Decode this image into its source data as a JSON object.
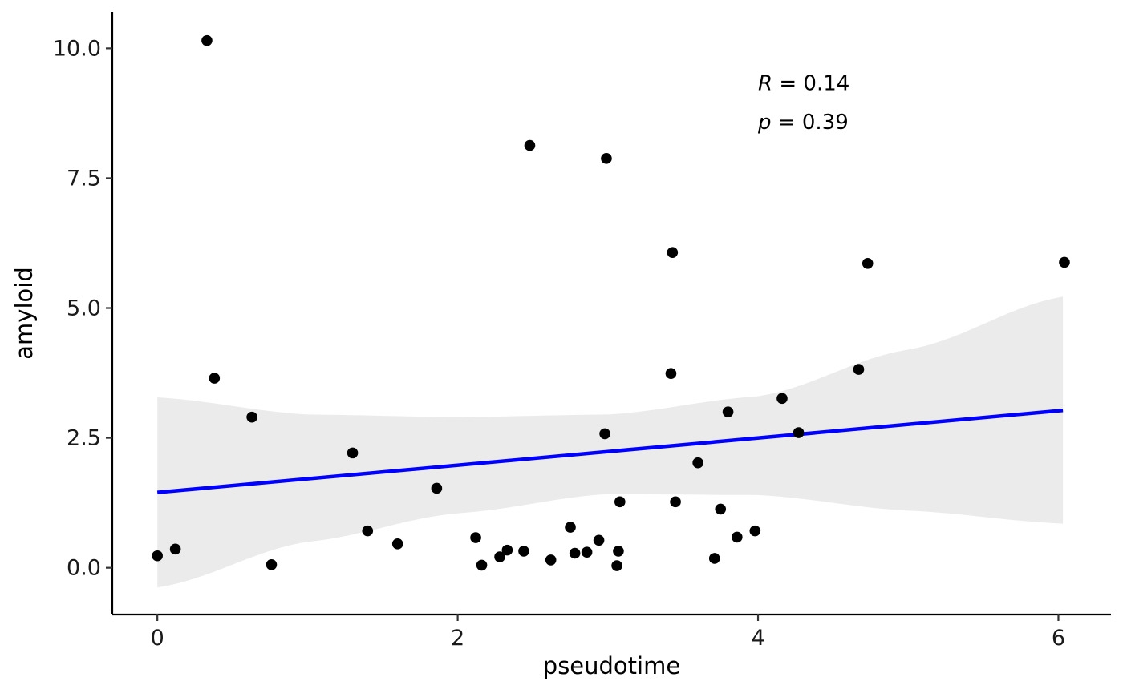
{
  "chart_data": {
    "type": "scatter",
    "title": "",
    "xlabel": "pseudotime",
    "ylabel": "amyloid",
    "xlim": [
      -0.3,
      6.35
    ],
    "ylim": [
      -0.9,
      10.7
    ],
    "x_ticks": [
      0,
      2,
      4,
      6
    ],
    "x_tick_labels": [
      "0",
      "2",
      "4",
      "6"
    ],
    "y_ticks": [
      0,
      2.5,
      5,
      7.5,
      10
    ],
    "y_tick_labels": [
      "0.0",
      "2.5",
      "5.0",
      "7.5",
      "10.0"
    ],
    "grid": false,
    "annotations": [
      {
        "var": "R",
        "text": " = 0.14",
        "x": 4.0,
        "y": 9.35
      },
      {
        "var": "p",
        "text": " = 0.39",
        "x": 4.0,
        "y": 8.6
      }
    ],
    "regression": {
      "x_start": 0.0,
      "y_start": 1.45,
      "x_end": 6.03,
      "y_end": 3.03,
      "color": "#0000ff"
    },
    "confidence_band": {
      "color": "#ebebeb",
      "x": [
        0.0,
        1.0,
        2.0,
        3.0,
        4.0,
        5.0,
        6.03
      ],
      "upper": [
        3.28,
        2.95,
        2.9,
        2.95,
        3.3,
        4.2,
        5.22
      ],
      "lower": [
        -0.38,
        0.5,
        1.05,
        1.42,
        1.4,
        1.1,
        0.85
      ]
    },
    "point_color": "#000000",
    "points": [
      {
        "x": 0.0,
        "y": 0.23
      },
      {
        "x": 0.12,
        "y": 0.36
      },
      {
        "x": 0.33,
        "y": 10.15
      },
      {
        "x": 0.38,
        "y": 3.65
      },
      {
        "x": 0.63,
        "y": 2.9
      },
      {
        "x": 0.76,
        "y": 0.06
      },
      {
        "x": 1.3,
        "y": 2.21
      },
      {
        "x": 1.4,
        "y": 0.71
      },
      {
        "x": 1.6,
        "y": 0.46
      },
      {
        "x": 1.86,
        "y": 1.53
      },
      {
        "x": 2.12,
        "y": 0.58
      },
      {
        "x": 2.16,
        "y": 0.05
      },
      {
        "x": 2.28,
        "y": 0.21
      },
      {
        "x": 2.33,
        "y": 0.34
      },
      {
        "x": 2.44,
        "y": 0.32
      },
      {
        "x": 2.48,
        "y": 8.13
      },
      {
        "x": 2.62,
        "y": 0.15
      },
      {
        "x": 2.75,
        "y": 0.78
      },
      {
        "x": 2.78,
        "y": 0.28
      },
      {
        "x": 2.86,
        "y": 0.3
      },
      {
        "x": 2.94,
        "y": 0.53
      },
      {
        "x": 2.98,
        "y": 2.58
      },
      {
        "x": 2.99,
        "y": 7.88
      },
      {
        "x": 3.06,
        "y": 0.04
      },
      {
        "x": 3.07,
        "y": 0.32
      },
      {
        "x": 3.08,
        "y": 1.27
      },
      {
        "x": 3.42,
        "y": 3.74
      },
      {
        "x": 3.43,
        "y": 6.07
      },
      {
        "x": 3.45,
        "y": 1.27
      },
      {
        "x": 3.6,
        "y": 2.02
      },
      {
        "x": 3.71,
        "y": 0.18
      },
      {
        "x": 3.75,
        "y": 1.13
      },
      {
        "x": 3.8,
        "y": 3.0
      },
      {
        "x": 3.86,
        "y": 0.59
      },
      {
        "x": 3.98,
        "y": 0.71
      },
      {
        "x": 4.16,
        "y": 3.26
      },
      {
        "x": 4.27,
        "y": 2.6
      },
      {
        "x": 4.67,
        "y": 3.82
      },
      {
        "x": 4.73,
        "y": 5.86
      },
      {
        "x": 6.04,
        "y": 5.88
      }
    ]
  }
}
